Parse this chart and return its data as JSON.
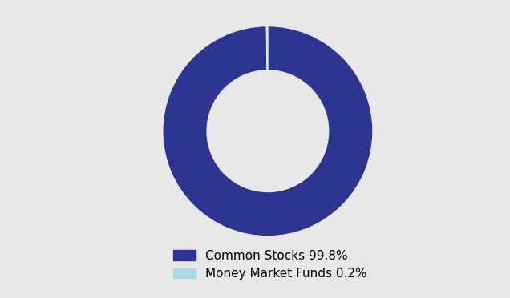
{
  "labels": [
    "Common Stocks 99.8%",
    "Money Market Funds 0.2%"
  ],
  "values": [
    99.8,
    0.2
  ],
  "colors": [
    "#2e3590",
    "#add8e6"
  ],
  "background_color": "#e8e8e8",
  "legend_fontsize": 11,
  "donut_width": 0.42,
  "startangle": 90
}
